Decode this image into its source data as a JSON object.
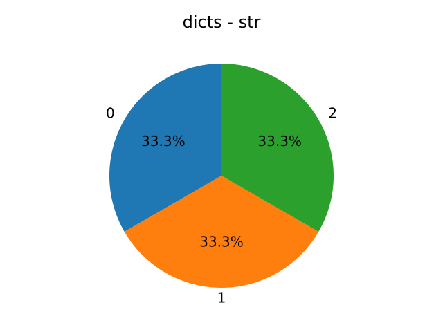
{
  "chart_data": {
    "type": "pie",
    "title": "dicts - str",
    "labels": [
      "0",
      "1",
      "2"
    ],
    "values": [
      1,
      1,
      1
    ],
    "percent_labels": [
      "33.3%",
      "33.3%",
      "33.3%"
    ],
    "colors": [
      "#1f77b4",
      "#ff7f0e",
      "#2ca02c"
    ],
    "start_angle_deg": 90,
    "direction": "counterclockwise"
  }
}
